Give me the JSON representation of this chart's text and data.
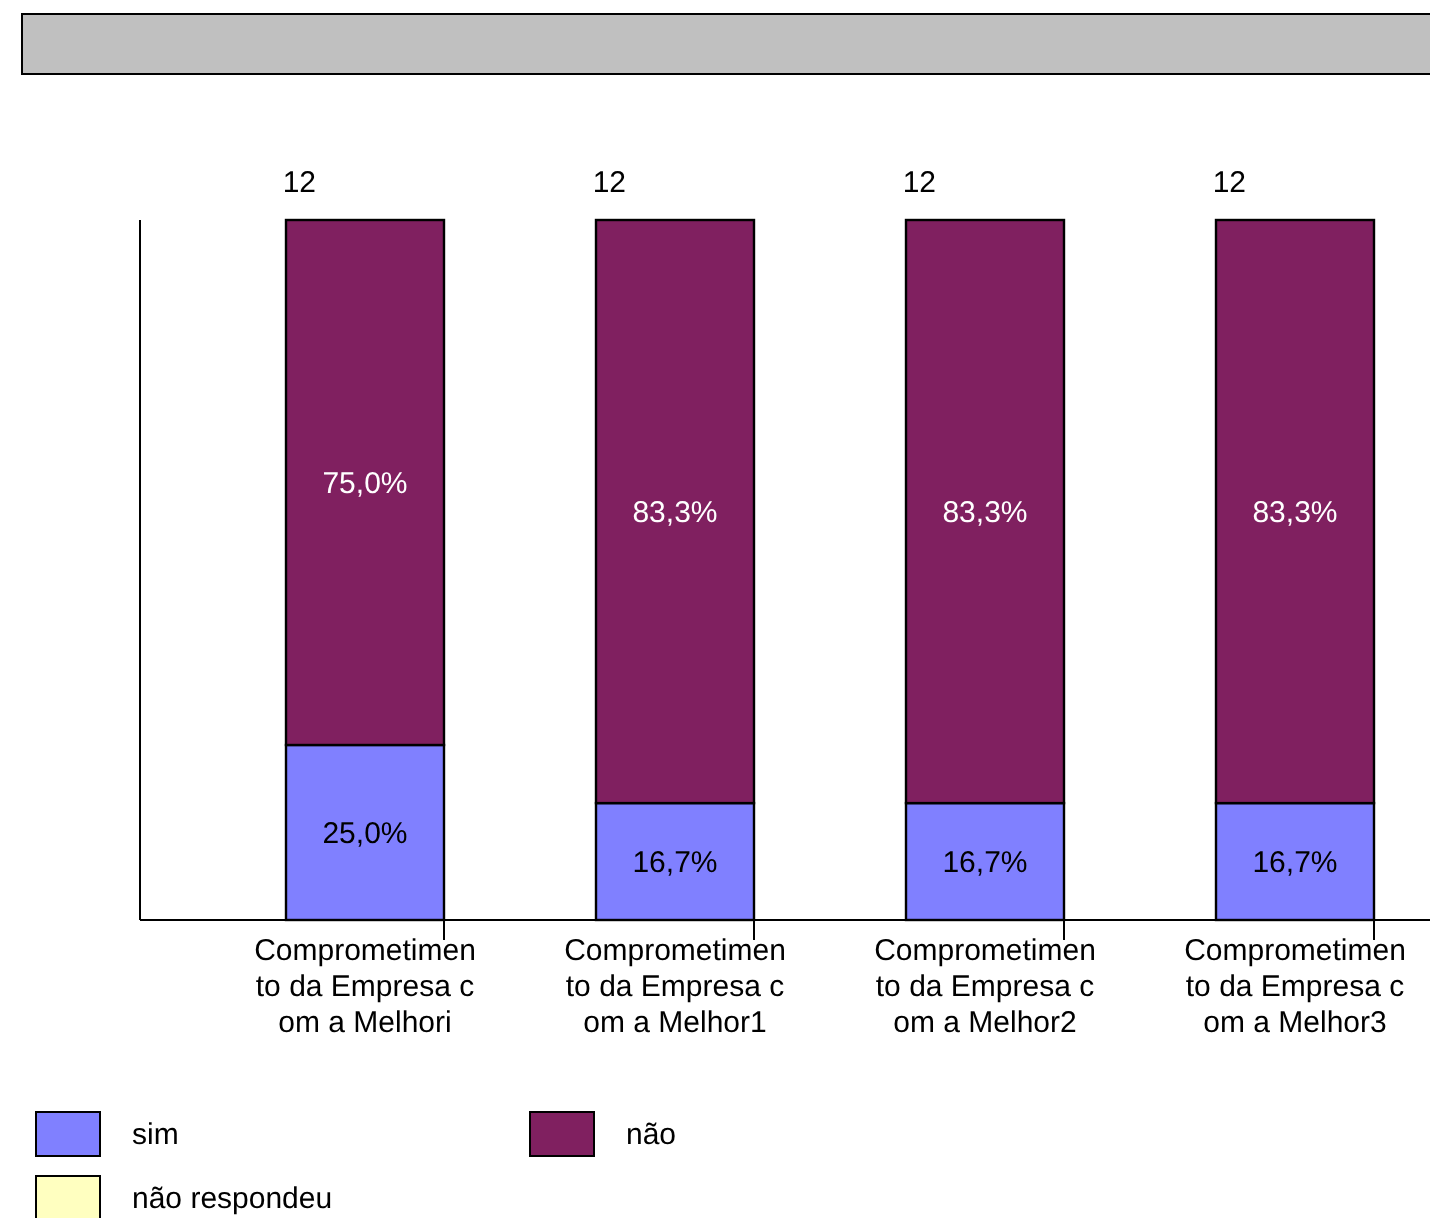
{
  "chart_data": {
    "type": "bar",
    "stacked": true,
    "categories": [
      "Comprometimento da Empresa com a Melhori",
      "Comprometimento da Empresa com a Melhor1",
      "Comprometimento da Empresa com a Melhor2",
      "Comprometimento da Empresa com a Melhor3"
    ],
    "series": [
      {
        "name": "sim",
        "color": "#8080ff",
        "values": [
          25.0,
          16.7,
          16.7,
          16.7
        ],
        "value_labels": [
          "25,0%",
          "16,7%",
          "16,7%",
          "16,7%"
        ]
      },
      {
        "name": "não",
        "color": "#802060",
        "values": [
          75.0,
          83.3,
          83.3,
          83.3
        ],
        "value_labels": [
          "75,0%",
          "83,3%",
          "83,3%",
          "83,3%"
        ]
      },
      {
        "name": "não respondeu",
        "color": "#ffffc0",
        "values": [
          null,
          null,
          null,
          null
        ]
      }
    ],
    "annotations": [
      {
        "text": "12",
        "x": "Comprometimento da Empresa com a Melhori",
        "y": 100
      },
      {
        "text": "12",
        "x": "Comprometimento da Empresa com a Melhor1",
        "y": 100
      },
      {
        "text": "12",
        "x": "Comprometimento da Empresa com a Melhor2",
        "y": 100
      },
      {
        "text": "12",
        "x": "Comprometimento da Empresa com a Melhor3",
        "y": 100
      }
    ],
    "tick_labels": "x",
    "legend": "bottom",
    "grid": false
  }
}
